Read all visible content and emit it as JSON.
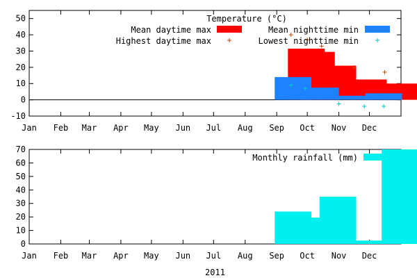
{
  "chart_data": [
    {
      "type": "bar",
      "title": "Temperature (°C)",
      "xlabel": "",
      "ylabel": "",
      "x_ticks": [
        "Jan",
        "Feb",
        "Mar",
        "Apr",
        "May",
        "Jun",
        "Jul",
        "Aug",
        "Sep",
        "Oct",
        "Nov",
        "Dec"
      ],
      "ylim": [
        -10,
        55
      ],
      "y_ticks": [
        -10,
        0,
        10,
        20,
        30,
        40,
        50
      ],
      "legend_position": "top-right",
      "series": [
        {
          "name": "Mean daytime max",
          "kind": "bar",
          "color": "#ff0000",
          "points": [
            {
              "x": "2011-09-30",
              "y": 31.5
            },
            {
              "x": "2011-10-10",
              "y": 29.5
            },
            {
              "x": "2011-10-31",
              "y": 21.0
            },
            {
              "x": "2011-11-30",
              "y": 12.5
            },
            {
              "x": "2011-12-31",
              "y": 10.0
            }
          ]
        },
        {
          "name": "Mean nighttime min",
          "kind": "bar",
          "color": "#1e82ff",
          "points": [
            {
              "x": "2011-09-17",
              "y": 14.0
            },
            {
              "x": "2011-10-14",
              "y": 7.5
            },
            {
              "x": "2011-11-15",
              "y": 2.5
            },
            {
              "x": "2011-12-15",
              "y": 4.0
            }
          ]
        },
        {
          "name": "Highest daytime max",
          "kind": "marker",
          "color": "#c84600",
          "points": [
            {
              "x": "2011-09-15",
              "y": 40.0
            },
            {
              "x": "2011-10-01",
              "y": 37.0
            },
            {
              "x": "2011-10-15",
              "y": 33.0
            },
            {
              "x": "2011-11-16",
              "y": 20.0
            },
            {
              "x": "2011-12-16",
              "y": 17.0
            }
          ]
        },
        {
          "name": "Lowest nighttime min",
          "kind": "marker",
          "color": "#00c8c8",
          "points": [
            {
              "x": "2011-09-15",
              "y": 9.0
            },
            {
              "x": "2011-09-29",
              "y": 7.0
            },
            {
              "x": "2011-11-01",
              "y": -2.5
            },
            {
              "x": "2011-11-26",
              "y": -4.0
            },
            {
              "x": "2011-12-15",
              "y": -4.0
            }
          ]
        }
      ]
    },
    {
      "type": "bar",
      "title": "",
      "xlabel": "2011",
      "ylabel": "",
      "x_ticks": [
        "Jan",
        "Feb",
        "Mar",
        "Apr",
        "May",
        "Jun",
        "Jul",
        "Aug",
        "Sep",
        "Oct",
        "Nov",
        "Dec"
      ],
      "ylim": [
        0,
        70
      ],
      "y_ticks": [
        0,
        10,
        20,
        30,
        40,
        50,
        60,
        70
      ],
      "legend_position": "top-right",
      "series": [
        {
          "name": "Monthly rainfall (mm)",
          "kind": "bar",
          "color": "#00f0f0",
          "points": [
            {
              "x": "2011-09-17",
              "y": 24.0
            },
            {
              "x": "2011-10-15",
              "y": 19.5
            },
            {
              "x": "2011-10-31",
              "y": 35.0
            },
            {
              "x": "2011-11-30",
              "y": 2.5
            },
            {
              "x": "2011-12-31",
              "y": 70.0
            }
          ]
        }
      ]
    }
  ]
}
